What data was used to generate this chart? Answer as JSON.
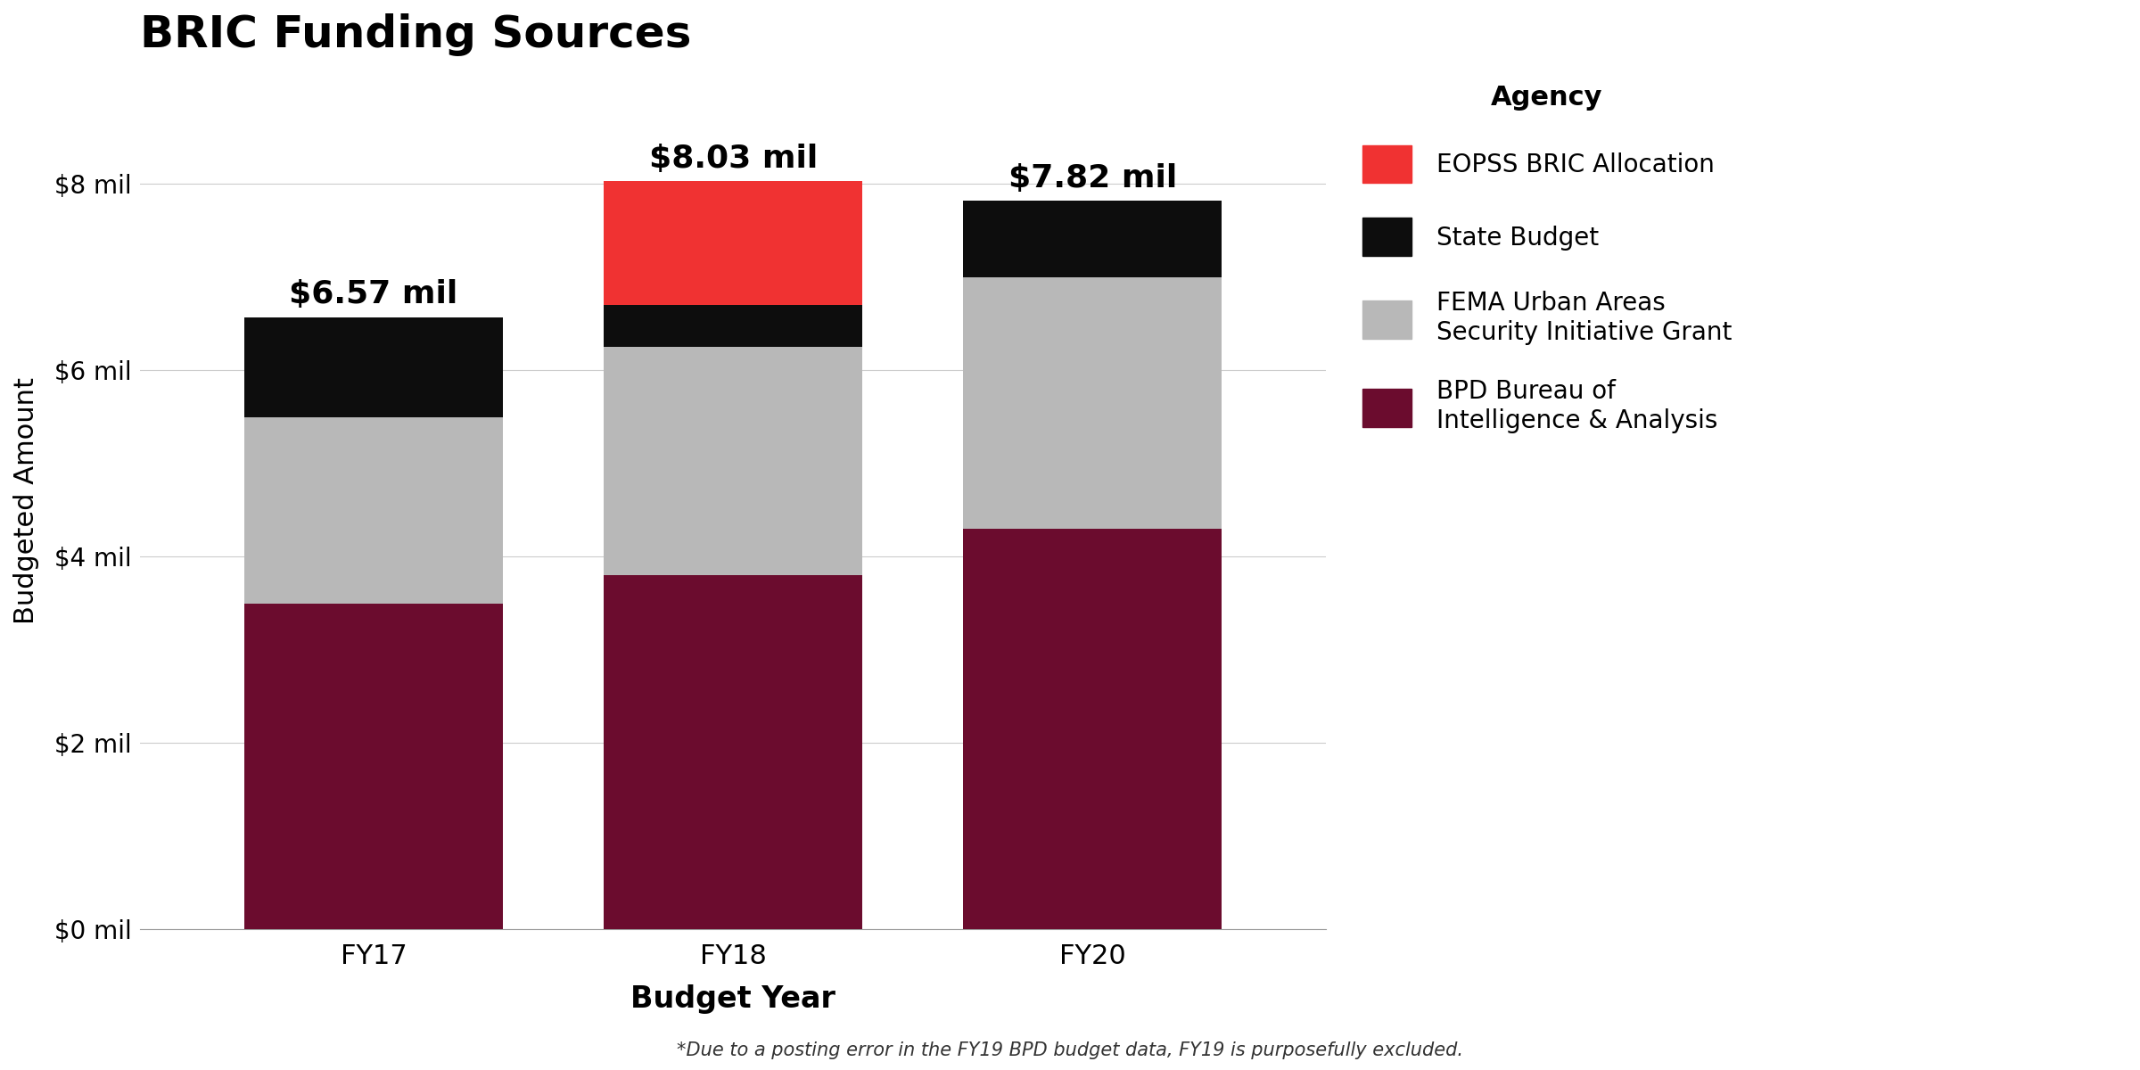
{
  "title": "BRIC Funding Sources",
  "xlabel": "Budget Year",
  "ylabel": "Budgeted Amount",
  "footnote": "*Due to a posting error in the FY19 BPD budget data, FY19 is purposefully excluded.",
  "categories": [
    "FY17",
    "FY18",
    "FY20"
  ],
  "totals": [
    "$6.57 mil",
    "$8.03 mil",
    "$7.82 mil"
  ],
  "total_values": [
    6570000,
    8030000,
    7820000
  ],
  "series_order": [
    "BPD Bureau of Intelligence & Analysis",
    "FEMA Urban Areas Security Initiative Grant",
    "State Budget",
    "EOPSS BRIC Allocation"
  ],
  "series": {
    "EOPSS BRIC Allocation": {
      "values": [
        0.0,
        1330000,
        0.0
      ],
      "color": "#f03232"
    },
    "State Budget": {
      "values": [
        1070000,
        450000,
        820000
      ],
      "color": "#0d0d0d"
    },
    "FEMA Urban Areas Security Initiative Grant": {
      "values": [
        2000000,
        2450000,
        2700000
      ],
      "color": "#b8b8b8"
    },
    "BPD Bureau of Intelligence & Analysis": {
      "values": [
        3500000,
        3800000,
        4300000
      ],
      "color": "#6b0c2e"
    }
  },
  "legend_labels": [
    "EOPSS BRIC Allocation",
    "State Budget",
    "FEMA Urban Areas\nSecurity Initiative Grant",
    "BPD Bureau of\nIntelligence & Analysis"
  ],
  "legend_colors": [
    "#f03232",
    "#0d0d0d",
    "#b8b8b8",
    "#6b0c2e"
  ],
  "yticks": [
    0,
    2000000,
    4000000,
    6000000,
    8000000
  ],
  "ytick_labels": [
    "$0 mil",
    "$2 mil",
    "$4 mil",
    "$6 mil",
    "$8 mil"
  ],
  "ylim": [
    0,
    9200000
  ],
  "bar_width": 0.72,
  "background_color": "#ffffff",
  "title_fontsize": 36,
  "axis_label_fontsize": 22,
  "tick_fontsize": 20,
  "annotation_fontsize": 26,
  "legend_fontsize": 20,
  "legend_title_fontsize": 22
}
